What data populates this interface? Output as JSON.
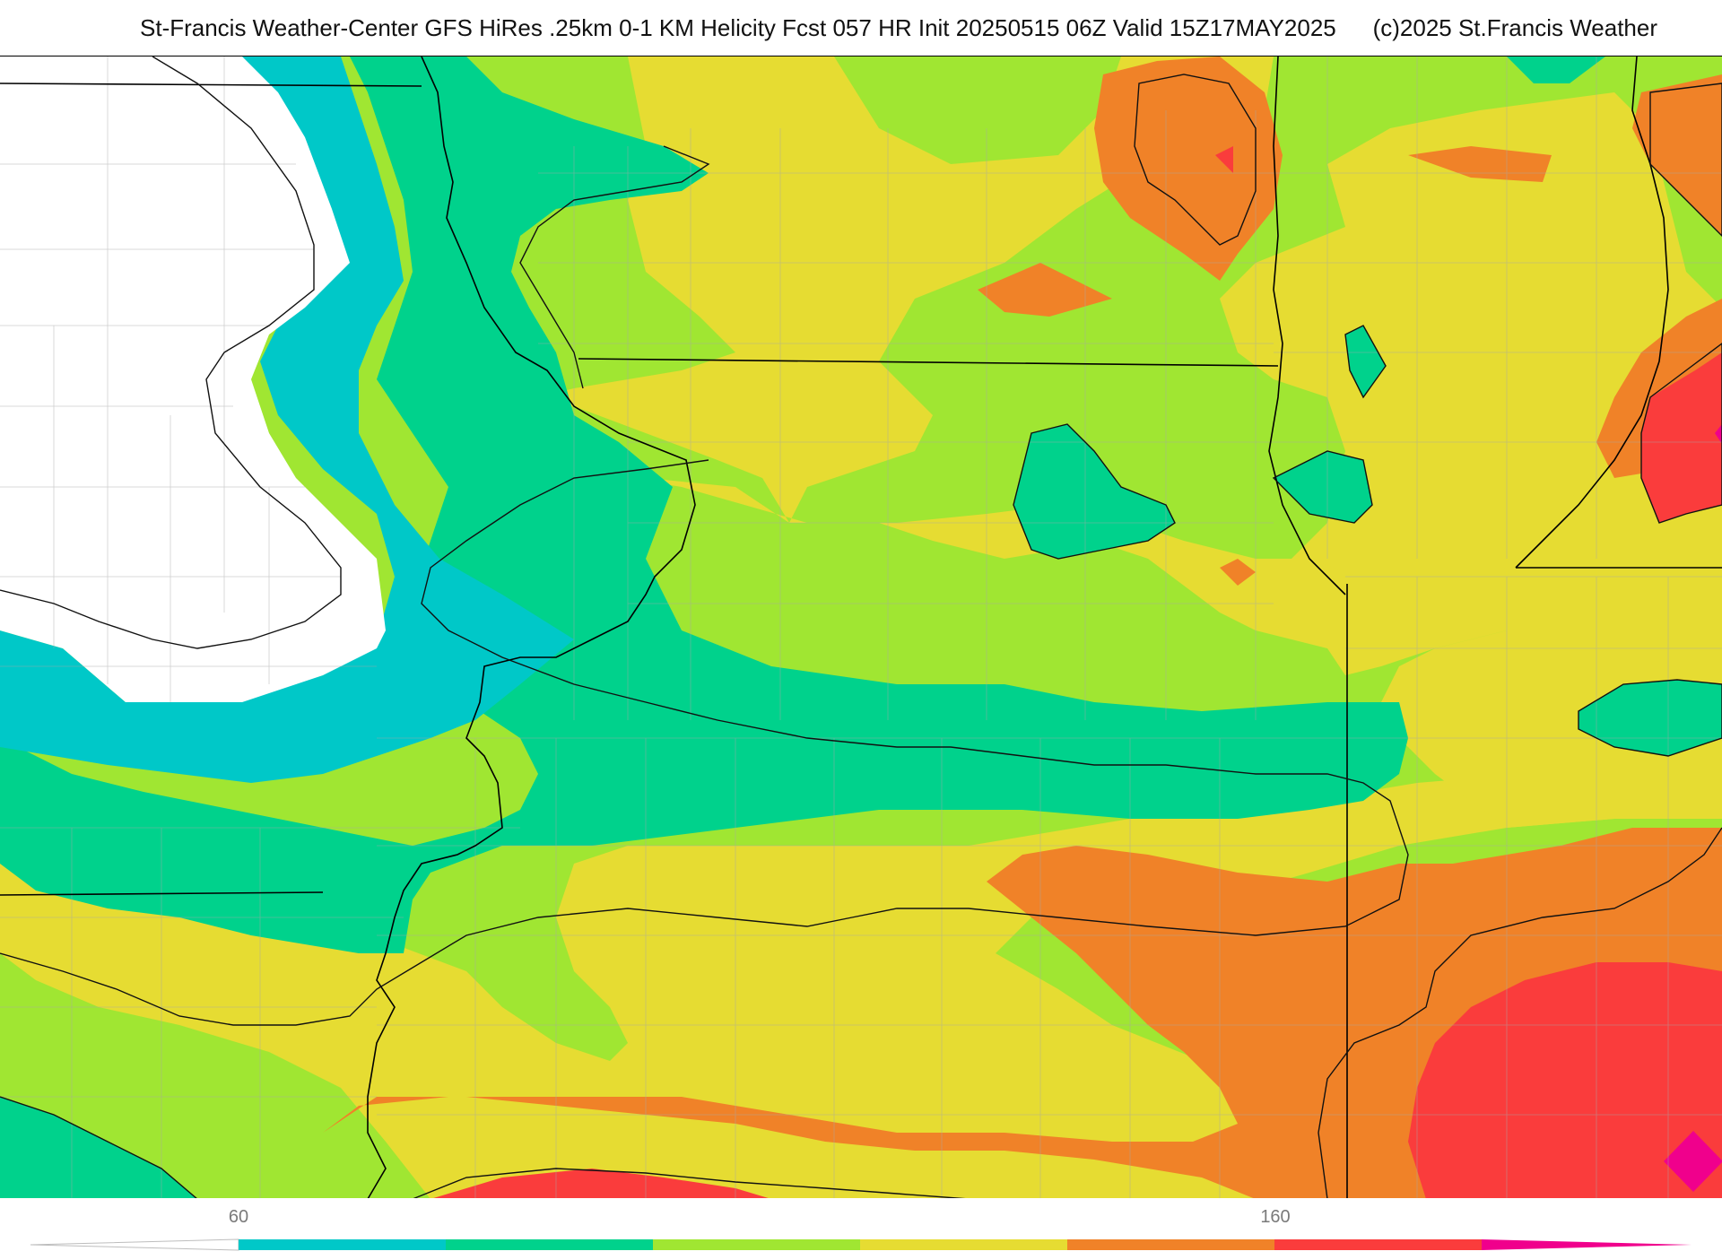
{
  "header": {
    "title": "St-Francis Weather-Center GFS HiRes .25km 0-1 KM Helicity Fcst 057 HR Init 20250515 06Z  Valid 15Z17MAY2025",
    "copyright": "(c)2025 St.Francis Weather"
  },
  "legend": {
    "tick_labels": [
      "60",
      "160"
    ],
    "colors": [
      "#ffffff",
      "#00c8c8",
      "#00d28c",
      "#a0e632",
      "#e6dc32",
      "#f08228",
      "#fa3c3c",
      "#f0008c"
    ]
  },
  "map": {
    "palette": {
      "none": "#ffffff",
      "cyan": "#00c8c8",
      "green": "#00d28c",
      "lime": "#a0e632",
      "yellow": "#e6dc32",
      "orange": "#f08228",
      "red": "#fa3c3c",
      "magenta": "#f0008c"
    }
  }
}
